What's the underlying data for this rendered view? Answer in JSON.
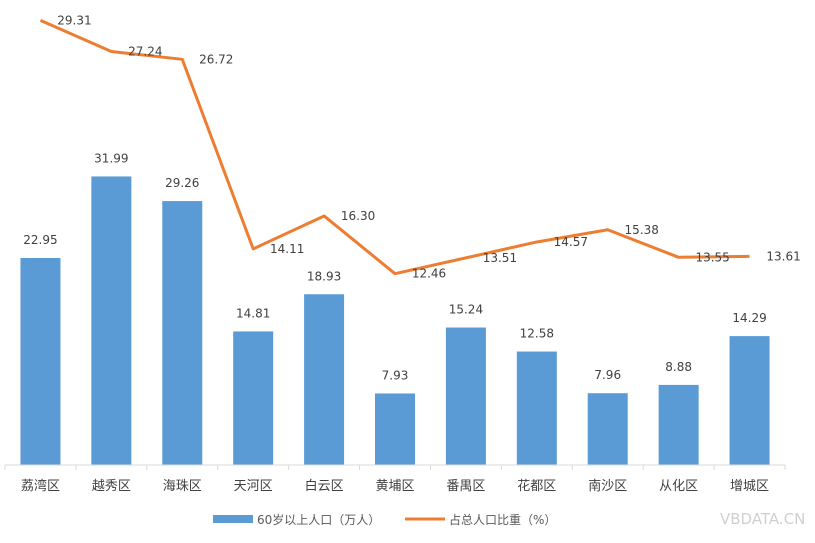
{
  "chart_data": {
    "type": "bar+line",
    "categories": [
      "荔湾区",
      "越秀区",
      "海珠区",
      "天河区",
      "白云区",
      "黄埔区",
      "番禺区",
      "花都区",
      "南沙区",
      "从化区",
      "增城区"
    ],
    "series": [
      {
        "name": "60岁以上人口（万人）",
        "type": "bar",
        "axis": "primary",
        "color": "#5b9bd5",
        "values": [
          22.95,
          31.99,
          29.26,
          14.81,
          18.93,
          7.93,
          15.24,
          12.58,
          7.96,
          8.88,
          14.29
        ]
      },
      {
        "name": "占总人口比重（%）",
        "type": "line",
        "axis": "secondary",
        "color": "#ed7d31",
        "values": [
          29.31,
          27.24,
          26.72,
          14.11,
          16.3,
          12.46,
          13.51,
          14.57,
          15.38,
          13.55,
          13.61
        ]
      }
    ],
    "ylim_primary": [
      0,
      50
    ],
    "ylim_secondary": [
      0,
      30
    ],
    "grid": false,
    "axes_visible": false,
    "data_labels": true,
    "legend_position": "bottom"
  },
  "watermark": "VBDATA.CN"
}
